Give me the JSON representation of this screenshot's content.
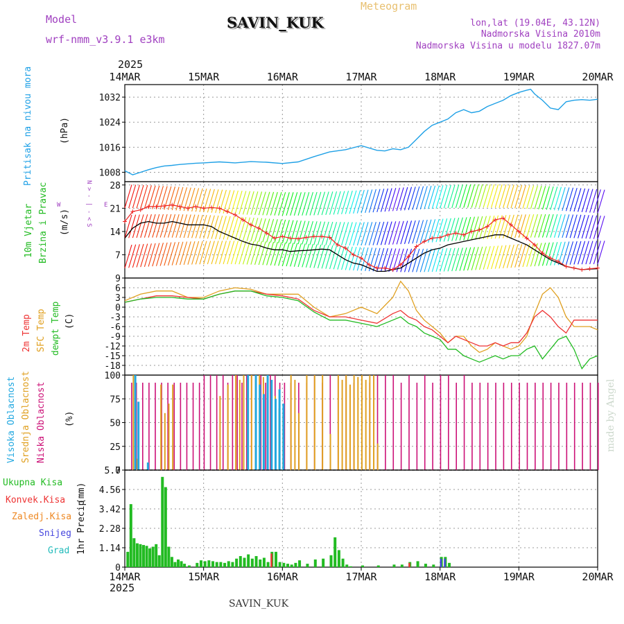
{
  "header": {
    "model_label": "Model",
    "model_name": "wrf-nmm_v3.9.1  e3km",
    "station": "SAVIN_KUK",
    "title": "Meteogram",
    "lonlat": "lon,lat (19.04E, 43.12N)",
    "altitude": "Nadmorska Visina 2010m",
    "model_altitude": "Nadmorska Visina u modelu 1827.07m",
    "footer_station": "SAVIN_KUK",
    "watermark": "made by Angel"
  },
  "colors": {
    "pressure": "#1ea0e6",
    "wind_max": "#ee2222",
    "wind_mean": "#000000",
    "temp2m": "#ee3333",
    "sfc": "#e0a020",
    "dewpt": "#22bb22",
    "high_cloud": "#22a8e0",
    "mid_cloud": "#e0a020",
    "low_cloud": "#cc1177",
    "total_precip": "#22bb22",
    "conv_precip": "#ee3333",
    "frozen_precip": "#ee8822",
    "snow": "#4444dd",
    "hail": "#22bbbb"
  },
  "chart_data": [
    {
      "type": "line",
      "panel": "pressure",
      "title": "Pritisak na nivou mora",
      "ylabel": "Pritisak na nivou mora",
      "unit": "(hPa)",
      "ylim": [
        1005,
        1036
      ],
      "yticks": [
        1008,
        1016,
        1024,
        1032
      ],
      "x_days": [
        0,
        0.1,
        0.2,
        0.3,
        0.4,
        0.5,
        0.6,
        0.7,
        0.8,
        0.9,
        1,
        1.2,
        1.4,
        1.6,
        1.8,
        2,
        2.2,
        2.4,
        2.6,
        2.8,
        3,
        3.2,
        3.3,
        3.4,
        3.5,
        3.6,
        3.7,
        3.8,
        3.9,
        4,
        4.1,
        4.2,
        4.3,
        4.4,
        4.5,
        4.6,
        4.7,
        4.8,
        4.9,
        5,
        5.1,
        5.15,
        5.2,
        5.3,
        5.4,
        5.5,
        5.6,
        5.7,
        5.8,
        5.9,
        6
      ],
      "y": [
        1008.5,
        1007.2,
        1008,
        1008.8,
        1009.5,
        1010,
        1010.2,
        1010.5,
        1010.7,
        1010.9,
        1011,
        1011.3,
        1011,
        1011.4,
        1011.2,
        1010.8,
        1011.3,
        1013,
        1014.5,
        1015.2,
        1016.5,
        1015,
        1014.8,
        1015.5,
        1015.2,
        1016,
        1018.5,
        1021,
        1023,
        1024,
        1025,
        1027,
        1028,
        1027,
        1027.5,
        1029,
        1030,
        1031,
        1032.5,
        1033.5,
        1034.2,
        1034.5,
        1033,
        1031,
        1028.5,
        1028,
        1030.5,
        1031,
        1031.2,
        1031,
        1031.3
      ]
    },
    {
      "type": "line",
      "panel": "wind",
      "ylabel": "10m Vjetar Brzina i Pravac",
      "unit": "(m/s)",
      "ylim": [
        0,
        29
      ],
      "yticks": [
        7,
        14,
        21,
        28
      ],
      "compass": [
        "N",
        "<",
        "W",
        "E",
        "S"
      ],
      "x_days": [
        0,
        0.1,
        0.2,
        0.3,
        0.4,
        0.5,
        0.6,
        0.7,
        0.8,
        0.9,
        1,
        1.1,
        1.2,
        1.3,
        1.4,
        1.5,
        1.6,
        1.7,
        1.8,
        1.9,
        2,
        2.1,
        2.2,
        2.3,
        2.4,
        2.5,
        2.6,
        2.7,
        2.8,
        2.9,
        3,
        3.1,
        3.2,
        3.3,
        3.4,
        3.5,
        3.6,
        3.7,
        3.8,
        3.9,
        4,
        4.1,
        4.2,
        4.3,
        4.4,
        4.5,
        4.6,
        4.7,
        4.8,
        4.9,
        5,
        5.1,
        5.2,
        5.3,
        5.4,
        5.5,
        5.6,
        5.7,
        5.8,
        5.9,
        6
      ],
      "series": [
        {
          "name": "max",
          "values": [
            17,
            20,
            20.5,
            21.5,
            21.5,
            21.7,
            22,
            21.5,
            21,
            21.5,
            21,
            21.2,
            21,
            20,
            19,
            17.5,
            16,
            15,
            13.5,
            12,
            12.5,
            12,
            11.8,
            12.2,
            12.5,
            12.5,
            12.2,
            10,
            9,
            7,
            6,
            4,
            3,
            3,
            2.5,
            4,
            6.5,
            9.5,
            11,
            12,
            12.2,
            13,
            13.5,
            13,
            14,
            14.5,
            15.5,
            17.5,
            18,
            16,
            14,
            12,
            10,
            7.5,
            6,
            5,
            3.5,
            3,
            2.5,
            2.8,
            3
          ]
        },
        {
          "name": "mean",
          "values": [
            12,
            15,
            16.5,
            17,
            16.5,
            16.5,
            17,
            16.5,
            16,
            16,
            16,
            15.5,
            14,
            13,
            12,
            11,
            10.2,
            9.8,
            9,
            8.5,
            8.5,
            8,
            8.2,
            8.3,
            8.5,
            8.7,
            8.5,
            7,
            5.5,
            4.5,
            4,
            3,
            2,
            2,
            2.5,
            3,
            4.5,
            6,
            7.5,
            8.5,
            9,
            10,
            10.5,
            11,
            11.5,
            12,
            12.5,
            13,
            13,
            12,
            11,
            10,
            8.5,
            7,
            5.5,
            4.5,
            3.5,
            3,
            2.5,
            2.7,
            2.8
          ]
        }
      ]
    },
    {
      "type": "line",
      "panel": "temperature",
      "ylabel": "2m Temp / SFC Temp / dewpt Temp",
      "unit": "(C)",
      "ylim": [
        -21,
        9
      ],
      "yticks": [
        9,
        6,
        3,
        0,
        -3,
        -6,
        -9,
        -12,
        -15,
        -18
      ],
      "x_days": [
        0,
        0.2,
        0.4,
        0.6,
        0.8,
        1,
        1.2,
        1.4,
        1.6,
        1.8,
        2,
        2.2,
        2.4,
        2.6,
        2.8,
        3,
        3.2,
        3.4,
        3.5,
        3.6,
        3.7,
        3.8,
        3.9,
        4,
        4.1,
        4.2,
        4.3,
        4.4,
        4.5,
        4.6,
        4.7,
        4.8,
        4.9,
        5,
        5.1,
        5.2,
        5.3,
        5.4,
        5.5,
        5.6,
        5.7,
        5.8,
        5.9,
        6
      ],
      "series": [
        {
          "name": "2m Temp",
          "values": [
            1.5,
            2.5,
            3.5,
            3.5,
            3,
            2.5,
            4,
            5,
            5,
            4,
            3.5,
            2.5,
            -1,
            -3,
            -3,
            -4,
            -5,
            -2,
            -1,
            -3,
            -4,
            -6,
            -7,
            -9,
            -11,
            -9,
            -10,
            -11,
            -12,
            -12,
            -11,
            -12,
            -11,
            -11,
            -8,
            -3,
            -1,
            -3,
            -6,
            -8,
            -4,
            -4,
            -4,
            -4
          ]
        },
        {
          "name": "SFC Temp",
          "values": [
            2,
            4,
            5,
            5,
            3,
            3,
            5,
            6,
            5.5,
            4,
            4,
            4,
            0,
            -3,
            -2,
            0,
            -2,
            3,
            8,
            5,
            -1,
            -4,
            -6,
            -8,
            -11,
            -9,
            -9,
            -12,
            -14,
            -13,
            -11,
            -12,
            -13,
            -12,
            -9,
            -2,
            4,
            6,
            3,
            -3,
            -6,
            -6,
            -6,
            -7
          ]
        },
        {
          "name": "dewpt Temp",
          "values": [
            1.5,
            2.5,
            3,
            3,
            2.5,
            2.5,
            4,
            5,
            5,
            3.5,
            3,
            2,
            -1.5,
            -4,
            -4,
            -5,
            -6,
            -4,
            -3,
            -5,
            -6,
            -8,
            -9,
            -10,
            -13,
            -13,
            -15,
            -16,
            -17,
            -16,
            -15,
            -16,
            -15,
            -15,
            -13,
            -12,
            -16,
            -13,
            -10,
            -9,
            -13,
            -19,
            -16,
            -15
          ]
        }
      ]
    },
    {
      "type": "bar",
      "panel": "cloud",
      "ylabel": "Visoka Oblacnost / Srednja Oblacnost / Niska Oblacnost",
      "unit": "(%)",
      "ylim": [
        0,
        100
      ],
      "yticks": [
        0,
        25,
        50,
        75,
        100
      ],
      "series": [
        {
          "name": "Visoka Oblacnost",
          "x_days": [
            0.12,
            0.16,
            0.28,
            1.55,
            1.65,
            1.7,
            1.75,
            1.8,
            1.85,
            1.9,
            1.95,
            2.0
          ],
          "values": [
            100,
            72,
            8,
            100,
            100,
            90,
            80,
            100,
            95,
            75,
            85,
            70
          ]
        },
        {
          "name": "Srednja Oblacnost",
          "x_days": [
            0.1,
            0.15,
            0.45,
            0.5,
            0.55,
            0.6,
            1.2,
            1.3,
            1.4,
            1.45,
            1.5,
            1.55,
            1.6,
            1.65,
            1.7,
            1.75,
            1.8,
            1.85,
            1.9,
            1.95,
            2.0,
            2.1,
            2.15,
            2.2,
            2.3,
            2.4,
            2.5,
            2.6,
            2.7,
            2.75,
            2.8,
            2.85,
            2.9,
            2.95,
            3.0,
            3.05,
            3.1,
            3.15,
            3.2,
            3.3
          ],
          "values": [
            100,
            12,
            90,
            60,
            70,
            90,
            78,
            90,
            100,
            95,
            100,
            95,
            100,
            95,
            100,
            98,
            100,
            92,
            78,
            65,
            58,
            100,
            95,
            60,
            100,
            100,
            100,
            38,
            100,
            95,
            100,
            90,
            100,
            98,
            100,
            95,
            100,
            100,
            28,
            0
          ]
        },
        {
          "name": "Niska Oblacnost",
          "x_days": [
            0.08,
            0.14,
            0.22,
            0.3,
            0.38,
            0.46,
            0.54,
            0.62,
            0.7,
            0.78,
            0.86,
            0.94,
            1.0,
            1.08,
            1.16,
            1.24,
            1.3,
            1.36,
            1.42,
            1.48,
            1.54,
            1.6,
            1.66,
            1.72,
            1.78,
            1.84,
            1.9,
            1.96,
            2.02,
            2.1,
            2.2,
            2.3,
            2.4,
            2.5,
            2.6,
            2.7,
            2.8,
            2.9,
            3.0,
            3.1,
            3.2,
            3.3,
            3.4,
            3.5,
            3.6,
            3.7,
            3.8,
            3.9,
            4.0,
            4.1,
            4.2,
            4.3,
            4.4,
            4.5,
            4.6,
            4.7,
            4.8,
            4.9,
            5.0,
            5.1,
            5.2,
            5.3,
            5.4,
            5.5,
            5.6,
            5.7,
            5.8,
            5.9,
            6.0
          ],
          "values": [
            92,
            92,
            92,
            92,
            92,
            92,
            92,
            92,
            92,
            92,
            92,
            92,
            100,
            100,
            100,
            100,
            92,
            100,
            100,
            92,
            100,
            100,
            100,
            100,
            92,
            100,
            100,
            92,
            92,
            92,
            92,
            92,
            100,
            92,
            100,
            100,
            100,
            92,
            92,
            92,
            100,
            100,
            100,
            92,
            100,
            92,
            100,
            92,
            100,
            100,
            92,
            100,
            92,
            92,
            92,
            92,
            92,
            92,
            92,
            92,
            92,
            92,
            92,
            92,
            92,
            92,
            92,
            92,
            92
          ]
        }
      ]
    },
    {
      "type": "bar",
      "panel": "precip",
      "ylabel": "1hr Precip",
      "unit": "(mm)",
      "ylim": [
        0,
        5.7
      ],
      "yticks": [
        0,
        1.14,
        2.28,
        3.42,
        4.56,
        5.7
      ],
      "legend": [
        "Ukupna Kisa",
        "Konvek.Kisa",
        "Zaledj.Kisa",
        "Snijeg",
        "Grad"
      ],
      "x_days": [
        0.02,
        0.06,
        0.1,
        0.14,
        0.18,
        0.22,
        0.26,
        0.3,
        0.34,
        0.38,
        0.42,
        0.46,
        0.5,
        0.54,
        0.58,
        0.62,
        0.66,
        0.7,
        0.74,
        0.8,
        0.9,
        0.95,
        1.0,
        1.05,
        1.1,
        1.15,
        1.2,
        1.25,
        1.3,
        1.35,
        1.4,
        1.45,
        1.5,
        1.55,
        1.6,
        1.65,
        1.7,
        1.75,
        1.8,
        1.85,
        1.9,
        1.95,
        2.0,
        2.05,
        2.1,
        2.15,
        2.2,
        2.3,
        2.4,
        2.5,
        2.6,
        2.65,
        2.7,
        2.75,
        2.8,
        2.85,
        3.0,
        3.2,
        3.4,
        3.5,
        3.6,
        3.7,
        3.8,
        3.9,
        4.0,
        4.05,
        4.1
      ],
      "series": [
        {
          "name": "Ukupna Kisa",
          "values": [
            0.9,
            3.7,
            1.7,
            1.4,
            1.35,
            1.3,
            1.25,
            1.1,
            1.2,
            1.35,
            0.7,
            5.3,
            4.7,
            1.2,
            0.6,
            0.3,
            0.45,
            0.35,
            0.2,
            0.1,
            0.25,
            0.4,
            0.35,
            0.4,
            0.35,
            0.3,
            0.3,
            0.25,
            0.35,
            0.3,
            0.5,
            0.65,
            0.55,
            0.75,
            0.5,
            0.65,
            0.45,
            0.55,
            0.3,
            0.9,
            0.9,
            0.3,
            0.25,
            0.2,
            0.15,
            0.25,
            0.4,
            0.2,
            0.45,
            0.5,
            0.7,
            1.75,
            1.0,
            0.5,
            0.15,
            0.05,
            0.1,
            0.1,
            0.15,
            0.15,
            0.3,
            0.35,
            0.2,
            0.15,
            0.6,
            0.6,
            0.25
          ]
        },
        {
          "name": "Konvek.Kisa",
          "values": [
            0,
            0,
            0,
            0,
            0,
            0,
            0,
            0,
            0,
            0,
            0,
            0,
            0,
            0,
            0,
            0,
            0,
            0,
            0,
            0,
            0,
            0,
            0,
            0,
            0,
            0,
            0,
            0,
            0,
            0,
            0,
            0,
            0,
            0,
            0,
            0,
            0,
            0,
            0,
            0.8,
            0,
            0,
            0,
            0,
            0,
            0,
            0,
            0,
            0,
            0,
            0,
            0,
            0,
            0,
            0,
            0,
            0,
            0,
            0,
            0,
            0.25,
            0,
            0,
            0,
            0,
            0,
            0
          ]
        },
        {
          "name": "Snijeg",
          "values": [
            0,
            0,
            0,
            0,
            0,
            0,
            0,
            0,
            0,
            0,
            0,
            0,
            0,
            0,
            0,
            0,
            0,
            0,
            0,
            0,
            0,
            0,
            0,
            0,
            0,
            0,
            0,
            0,
            0,
            0,
            0,
            0,
            0,
            0,
            0,
            0,
            0,
            0,
            0,
            0,
            0,
            0,
            0,
            0,
            0,
            0,
            0,
            0,
            0,
            0,
            0,
            0,
            0,
            0,
            0,
            0,
            0,
            0,
            0,
            0,
            0,
            0,
            0,
            0,
            0.5,
            0.5,
            0
          ]
        }
      ]
    }
  ],
  "x_axis": {
    "year": "2025",
    "ticks": [
      "14MAR",
      "15MAR",
      "16MAR",
      "17MAR",
      "18MAR",
      "19MAR",
      "20MAR"
    ]
  }
}
